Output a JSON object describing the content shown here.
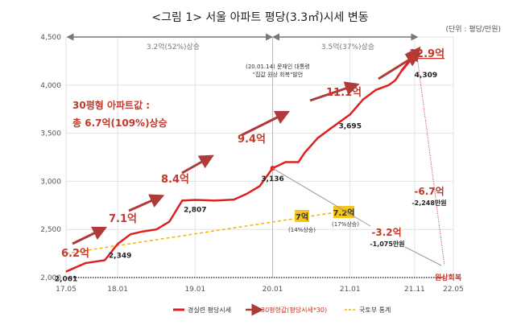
{
  "chart_data": {
    "type": "line",
    "title": "<그림 1> 서울 아파트 평당(3.3㎡)시세 변동",
    "unit": "(단위 : 평당/만원)",
    "xlim": [
      "17.05",
      "22.05"
    ],
    "ylim": [
      2000,
      4500
    ],
    "x_ticks": [
      "17.05",
      "18.01",
      "19.01",
      "20.01",
      "21.01",
      "21.11",
      "22.05"
    ],
    "y_ticks": [
      "2,000",
      "2,500",
      "3,000",
      "3,500",
      "4,000",
      "4,500"
    ],
    "grid": true,
    "legend_position": "bottom",
    "series": [
      {
        "name": "경실련 평당시세",
        "color": "#e02020",
        "x": [
          "17.05",
          "17.08",
          "17.11",
          "18.01",
          "18.03",
          "18.05",
          "18.07",
          "18.09",
          "18.11",
          "19.01",
          "19.04",
          "19.07",
          "19.09",
          "19.11",
          "20.01",
          "20.03",
          "20.05",
          "20.06",
          "20.08",
          "20.10",
          "21.01",
          "21.03",
          "21.05",
          "21.07",
          "21.08",
          "21.09",
          "21.11"
        ],
        "values": [
          2061,
          2150,
          2180,
          2349,
          2450,
          2480,
          2500,
          2580,
          2800,
          2807,
          2800,
          2810,
          2870,
          2950,
          3136,
          3200,
          3200,
          3300,
          3450,
          3550,
          3695,
          3850,
          3950,
          4000,
          4050,
          4150,
          4309
        ]
      },
      {
        "name": "국토부 통계",
        "color": "#f5b400",
        "x": [
          "17.05",
          "21.01"
        ],
        "values": [
          2250,
          2700
        ]
      }
    ],
    "arrow_legend": "30평형값(평당시세*30)",
    "data_labels": [
      {
        "text": "2,061",
        "x": "17.05",
        "y": 2061
      },
      {
        "text": "2,349",
        "x": "18.01",
        "y": 2349
      },
      {
        "text": "2,807",
        "x": "19.01",
        "y": 2807
      },
      {
        "text": "3,136",
        "x": "20.01",
        "y": 3136
      },
      {
        "text": "3,695",
        "x": "21.01",
        "y": 3695
      },
      {
        "text": "4,309",
        "x": "21.11",
        "y": 4309
      }
    ],
    "apt_values": [
      "6.2억",
      "7.1억",
      "8.4억",
      "9.4억",
      "11.1억",
      "12.9억"
    ],
    "spans": [
      {
        "text": "3.2억(52%)상승"
      },
      {
        "text": "3.5억(37%)상승"
      }
    ],
    "event_note": [
      "(20.01.14) 문재인 대통령",
      "\"집값 원상 회복\"발언"
    ],
    "summary": [
      "30평형 아파트값 :",
      "총 6.7억(109%)상승"
    ],
    "gov_labels": [
      {
        "value": "7억",
        "pct": "(14%상승)"
      },
      {
        "value": "7.2억",
        "pct": "(17%상승)"
      }
    ],
    "drops": [
      {
        "value": "-3.2억",
        "won": "-1,075만원"
      },
      {
        "value": "-6.7억",
        "won": "-2,248만원"
      }
    ],
    "restore": "원상회복"
  }
}
